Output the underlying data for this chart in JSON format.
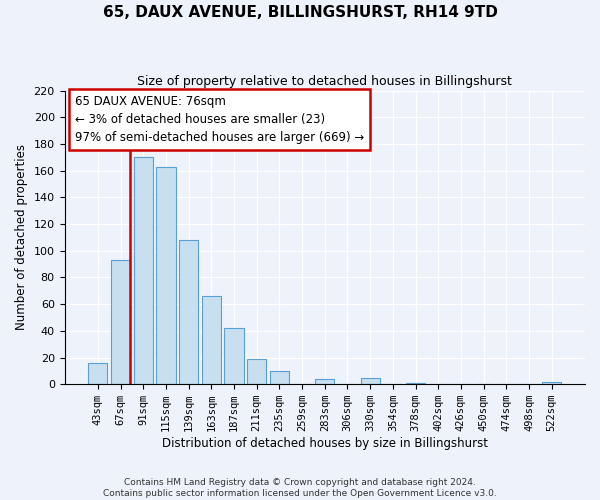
{
  "title": "65, DAUX AVENUE, BILLINGSHURST, RH14 9TD",
  "subtitle": "Size of property relative to detached houses in Billingshurst",
  "xlabel": "Distribution of detached houses by size in Billingshurst",
  "ylabel": "Number of detached properties",
  "bar_labels": [
    "43sqm",
    "67sqm",
    "91sqm",
    "115sqm",
    "139sqm",
    "163sqm",
    "187sqm",
    "211sqm",
    "235sqm",
    "259sqm",
    "283sqm",
    "306sqm",
    "330sqm",
    "354sqm",
    "378sqm",
    "402sqm",
    "426sqm",
    "450sqm",
    "474sqm",
    "498sqm",
    "522sqm"
  ],
  "bar_heights": [
    16,
    93,
    170,
    163,
    108,
    66,
    42,
    19,
    10,
    0,
    4,
    0,
    5,
    0,
    1,
    0,
    0,
    0,
    0,
    0,
    2
  ],
  "bar_color": "#c8dff0",
  "bar_edge_color": "#5a9fd4",
  "vline_color": "#cc0000",
  "annotation_title": "65 DAUX AVENUE: 76sqm",
  "annotation_line1": "← 3% of detached houses are smaller (23)",
  "annotation_line2": "97% of semi-detached houses are larger (669) →",
  "annotation_box_color": "#ffffff",
  "annotation_box_edge": "#cc0000",
  "ylim": [
    0,
    220
  ],
  "yticks": [
    0,
    20,
    40,
    60,
    80,
    100,
    120,
    140,
    160,
    180,
    200,
    220
  ],
  "footer1": "Contains HM Land Registry data © Crown copyright and database right 2024.",
  "footer2": "Contains public sector information licensed under the Open Government Licence v3.0.",
  "bg_color": "#eef2fb",
  "plot_bg_color": "#eef2fb",
  "grid_color": "#ffffff"
}
